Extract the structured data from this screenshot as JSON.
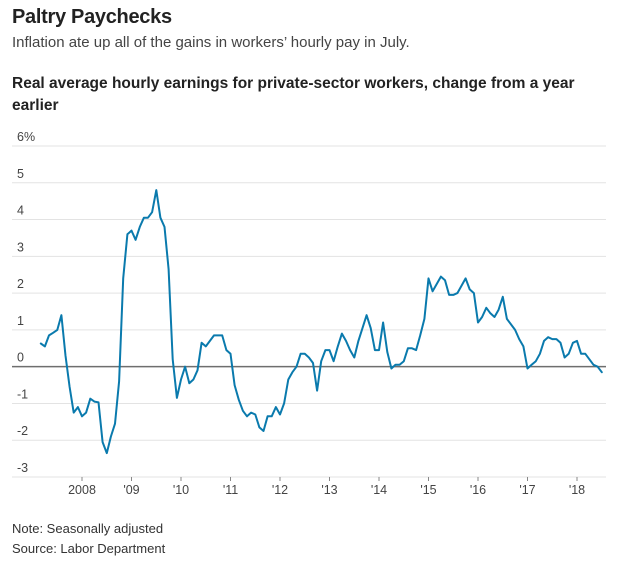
{
  "header": {
    "title": "Paltry Paychecks",
    "subtitle": "Inflation ate up all of the gains in workers’ hourly pay in July."
  },
  "footer": {
    "note": "Note: Seasonally adjusted",
    "source": "Source: Labor Department"
  },
  "chart_data": {
    "type": "line",
    "title": "Real average hourly earnings for private-sector workers, change from a year earlier",
    "xlabel": "",
    "ylabel": "",
    "unit": "%",
    "ylim": [
      -3,
      6
    ],
    "yticks": [
      6,
      5,
      4,
      3,
      2,
      1,
      0,
      -1,
      -2,
      -3
    ],
    "ytick_labels": [
      "6%",
      "5",
      "4",
      "3",
      "2",
      "1",
      "0",
      "-1",
      "-2",
      "-3"
    ],
    "xticks": [
      "2008",
      "'09",
      "'10",
      "'11",
      "'12",
      "'13",
      "'14",
      "'15",
      "'16",
      "'17",
      "'18"
    ],
    "xtick_years": [
      2008,
      2009,
      2010,
      2011,
      2012,
      2013,
      2014,
      2015,
      2016,
      2017,
      2018
    ],
    "grid": true,
    "legend": "none",
    "line_color": "#0a7aad",
    "start": "2007-03",
    "frequency": "monthly",
    "series": [
      {
        "name": "Real average hourly earnings, y/y change",
        "values": [
          0.63,
          0.55,
          0.85,
          0.92,
          1.0,
          1.4,
          0.3,
          -0.55,
          -1.25,
          -1.1,
          -1.35,
          -1.25,
          -0.87,
          -0.95,
          -0.97,
          -2.05,
          -2.35,
          -1.9,
          -1.55,
          -0.4,
          2.4,
          3.6,
          3.7,
          3.45,
          3.8,
          4.05,
          4.05,
          4.2,
          4.8,
          4.05,
          3.8,
          2.65,
          0.2,
          -0.85,
          -0.35,
          0.0,
          -0.45,
          -0.35,
          -0.1,
          0.65,
          0.55,
          0.7,
          0.85,
          0.85,
          0.85,
          0.45,
          0.35,
          -0.5,
          -0.9,
          -1.2,
          -1.35,
          -1.25,
          -1.3,
          -1.65,
          -1.75,
          -1.35,
          -1.35,
          -1.1,
          -1.3,
          -1.0,
          -0.35,
          -0.15,
          0.0,
          0.35,
          0.35,
          0.25,
          0.1,
          -0.65,
          0.15,
          0.45,
          0.45,
          0.15,
          0.55,
          0.9,
          0.7,
          0.45,
          0.25,
          0.7,
          1.05,
          1.4,
          1.05,
          0.45,
          0.45,
          1.2,
          0.4,
          -0.05,
          0.05,
          0.05,
          0.15,
          0.5,
          0.5,
          0.45,
          0.85,
          1.3,
          2.4,
          2.05,
          2.25,
          2.45,
          2.35,
          1.95,
          1.95,
          2.0,
          2.2,
          2.4,
          2.1,
          2.0,
          1.2,
          1.35,
          1.6,
          1.45,
          1.35,
          1.55,
          1.9,
          1.3,
          1.15,
          1.0,
          0.75,
          0.55,
          -0.05,
          0.05,
          0.15,
          0.35,
          0.7,
          0.8,
          0.75,
          0.75,
          0.65,
          0.25,
          0.35,
          0.65,
          0.7,
          0.35,
          0.35,
          0.2,
          0.05,
          0.0,
          -0.15
        ]
      }
    ]
  }
}
